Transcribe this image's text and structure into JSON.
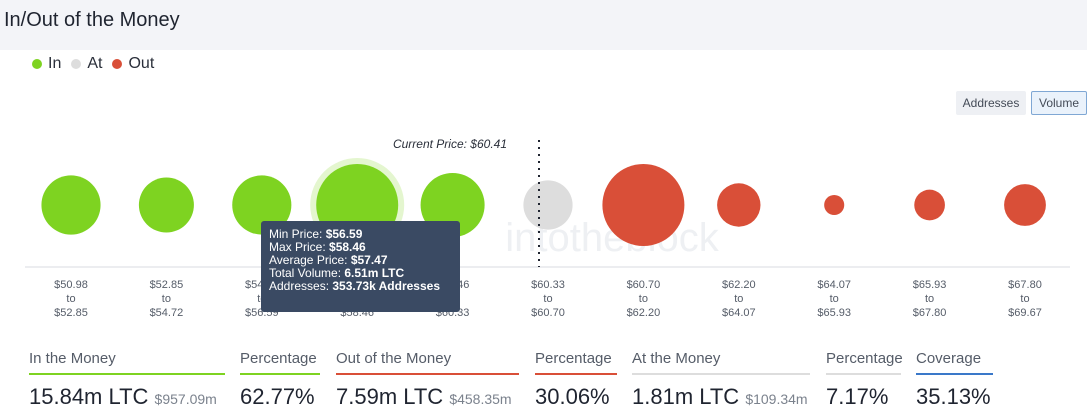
{
  "header": {
    "title": "In/Out of the Money"
  },
  "legend": [
    {
      "label": "In",
      "color": "#7ed321"
    },
    {
      "label": "At",
      "color": "#dddddd"
    },
    {
      "label": "Out",
      "color": "#d94f38"
    }
  ],
  "toggles": {
    "addresses": "Addresses",
    "volume": "Volume"
  },
  "watermark": "intotheblock",
  "chart_data": {
    "type": "scatter",
    "current_price_label": "Current Price: $60.41",
    "current_price": 60.41,
    "categories": [
      {
        "from": "$50.98",
        "to": "$52.85",
        "status": "in",
        "relative_volume": 0.52
      },
      {
        "from": "$52.85",
        "to": "$54.72",
        "status": "in",
        "relative_volume": 0.45
      },
      {
        "from": "$54.72",
        "to": "$56.59",
        "status": "in",
        "relative_volume": 0.52
      },
      {
        "from": "$56.59",
        "to": "$58.46",
        "status": "in",
        "relative_volume": 1.0,
        "highlight": true
      },
      {
        "from": "$58.46",
        "to": "$60.33",
        "status": "in",
        "relative_volume": 0.61
      },
      {
        "from": "$60.33",
        "to": "$60.70",
        "status": "at",
        "relative_volume": 0.36
      },
      {
        "from": "$60.70",
        "to": "$62.20",
        "status": "out",
        "relative_volume": 1.0
      },
      {
        "from": "$62.20",
        "to": "$64.07",
        "status": "out",
        "relative_volume": 0.28
      },
      {
        "from": "$64.07",
        "to": "$65.93",
        "status": "out",
        "relative_volume": 0.06
      },
      {
        "from": "$65.93",
        "to": "$67.80",
        "status": "out",
        "relative_volume": 0.14
      },
      {
        "from": "$67.80",
        "to": "$69.67",
        "status": "out",
        "relative_volume": 0.26
      }
    ],
    "to_word": "to",
    "tooltip": {
      "rows": [
        {
          "label": "Min Price: ",
          "value": "$56.59"
        },
        {
          "label": "Max Price: ",
          "value": "$58.46"
        },
        {
          "label": "Average Price: ",
          "value": "$57.47"
        },
        {
          "label": "Total Volume: ",
          "value": "6.51m LTC"
        },
        {
          "label": "Addresses: ",
          "value": "353.73k Addresses"
        }
      ]
    }
  },
  "stats": [
    {
      "label": "In the Money",
      "value": "15.84m LTC",
      "sub": "$957.09m",
      "color": "#7ed321"
    },
    {
      "label": "Percentage",
      "value": "62.77%",
      "sub": "",
      "color": "#7ed321"
    },
    {
      "label": "Out of the Money",
      "value": "7.59m LTC",
      "sub": "$458.35m",
      "color": "#d94f38"
    },
    {
      "label": "Percentage",
      "value": "30.06%",
      "sub": "",
      "color": "#d94f38"
    },
    {
      "label": "At the Money",
      "value": "1.81m LTC",
      "sub": "$109.34m",
      "color": "#dddddd"
    },
    {
      "label": "Percentage",
      "value": "7.17%",
      "sub": "",
      "color": "#dddddd"
    },
    {
      "label": "Coverage",
      "value": "35.13%",
      "sub": "",
      "color": "#3a78c9"
    }
  ]
}
